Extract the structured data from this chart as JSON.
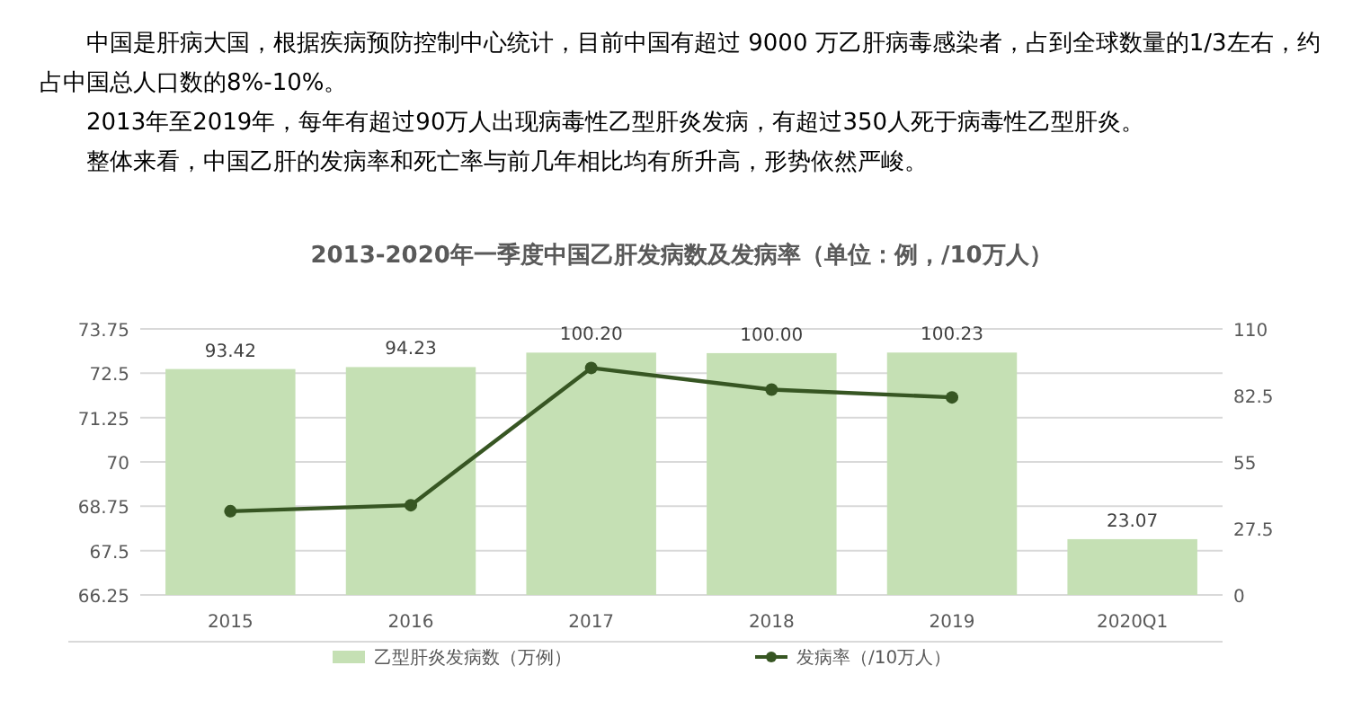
{
  "chart_data": {
    "type": "bar",
    "title": "2013-2020年一季度中国乙肝发病数及发病率（单位：例，/10万人）",
    "annotations": [
      "中国是肝病大国，根据疾病预防控制中心统计，目前中国有超过 9000 万乙肝病毒感染者，占到全球数量的1/3左右，约占中国总人口数的8%-10%。",
      "2013年至2019年，每年有超过90万人出现病毒性乙型肝炎发病，有超过350人死于病毒性乙型肝炎。",
      "整体来看，中国乙肝的发病率和死亡率与前几年相比均有所升高，形势依然严峻。"
    ],
    "categories": [
      "2015",
      "2016",
      "2017",
      "2018",
      "2019",
      "2020Q1"
    ],
    "series": [
      {
        "name": "乙型肝炎发病数（万例）",
        "axis": "y2",
        "color": "#c5e0b4",
        "values": [
          93.42,
          94.23,
          100.2,
          100.0,
          100.23,
          23.07
        ],
        "value_labels": [
          "93.42",
          "94.23",
          "100.20",
          "100.00",
          "100.23",
          "23.07"
        ]
      },
      {
        "name": "发病率（/10万人）",
        "type": "line",
        "axis": "y",
        "color": "#375623",
        "marker": "circle",
        "values": [
          68.61,
          68.78,
          72.65,
          72.04,
          71.82,
          null
        ]
      }
    ],
    "ylim": [
      66.25,
      73.75
    ],
    "yticks": [
      66.25,
      67.5,
      68.75,
      70,
      71.25,
      72.5,
      73.75
    ],
    "y2lim": [
      0,
      110
    ],
    "y2ticks": [
      0,
      27.5,
      55,
      82.5,
      110
    ],
    "grid": "y",
    "legend": "bottom"
  }
}
